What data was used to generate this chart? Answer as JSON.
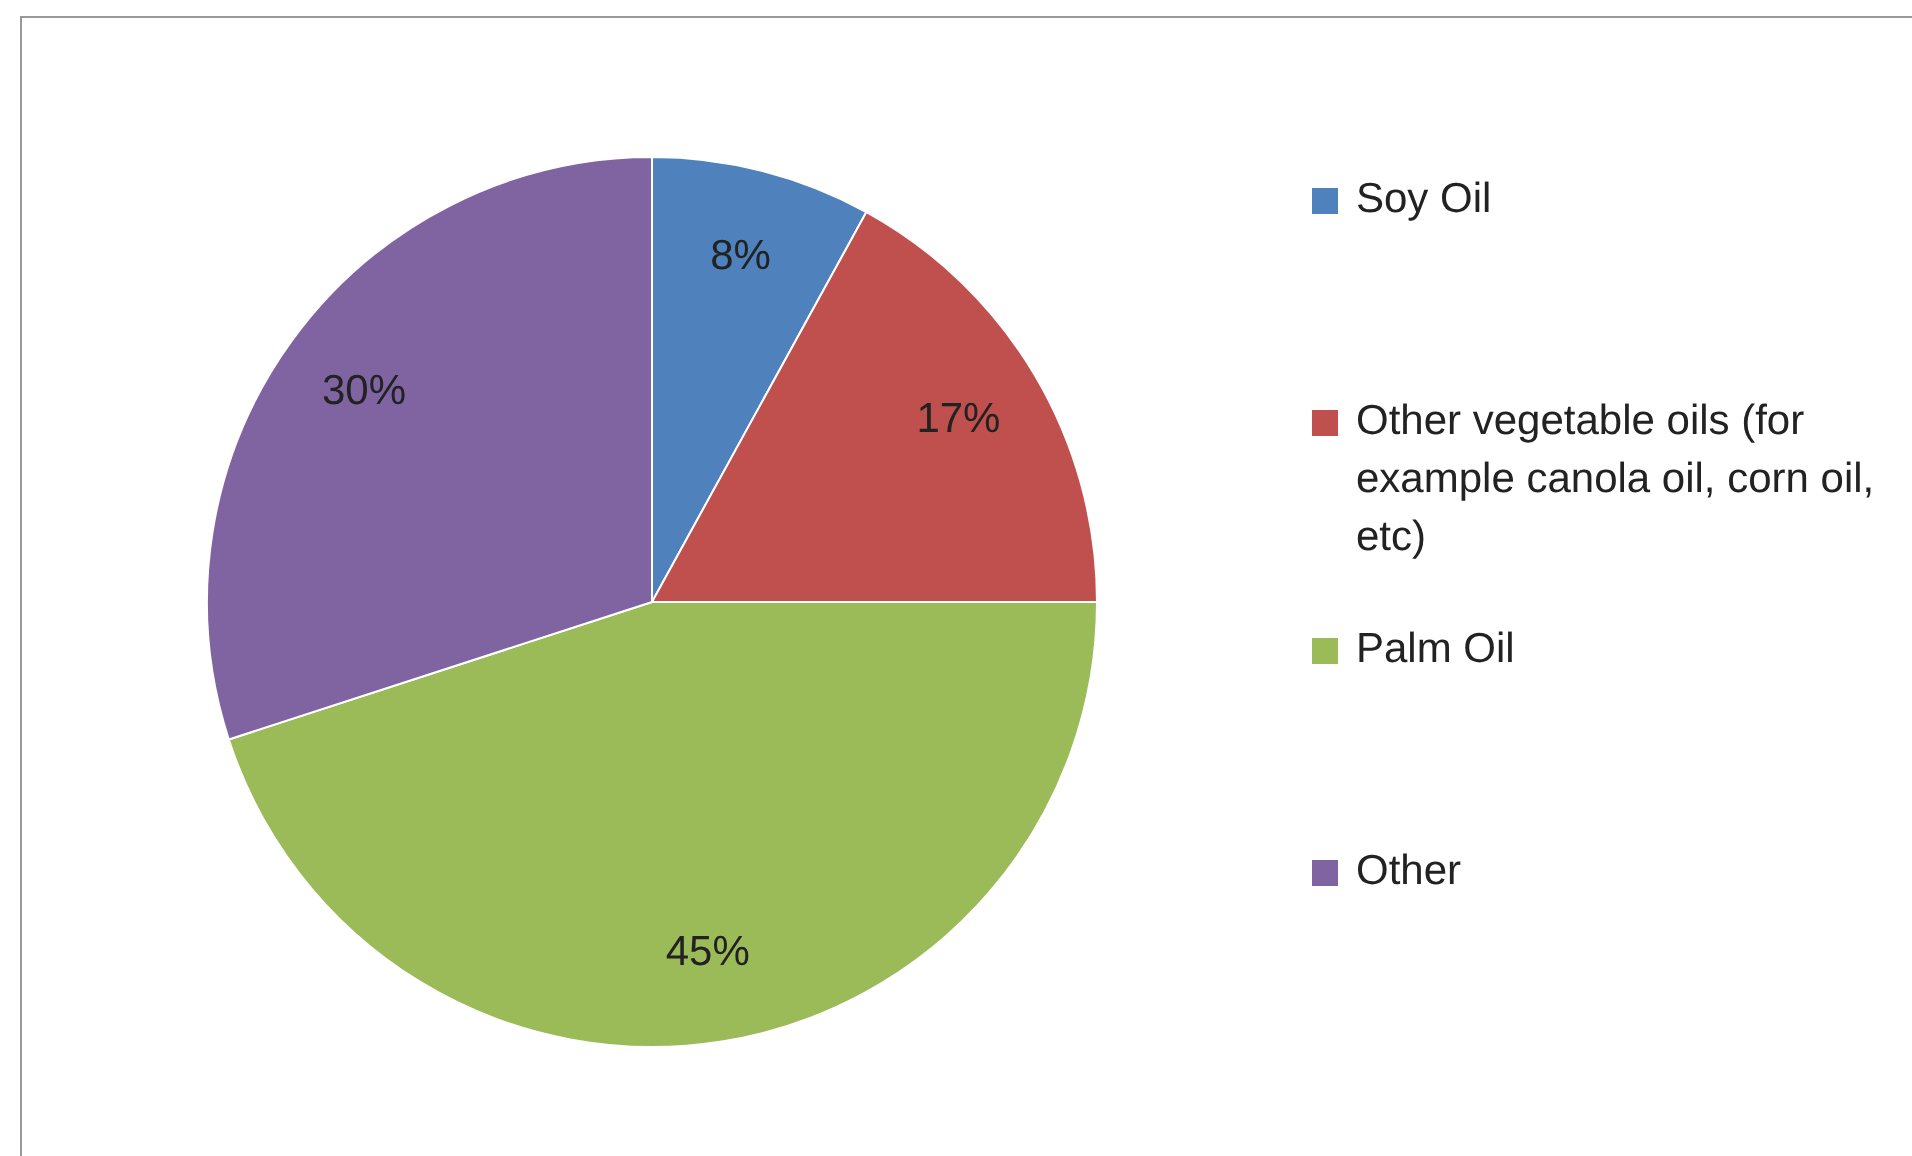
{
  "chart_data": {
    "type": "pie",
    "categories": [
      "Soy Oil",
      "Other vegetable oils (for example canola oil, corn oil, etc)",
      "Palm Oil",
      "Other"
    ],
    "values": [
      8,
      17,
      45,
      30
    ],
    "colors": [
      "#4f81bd",
      "#c0504d",
      "#9bbb59",
      "#8064a2"
    ],
    "value_labels": [
      "8%",
      "17%",
      "45%",
      "30%"
    ],
    "legend": "right"
  }
}
